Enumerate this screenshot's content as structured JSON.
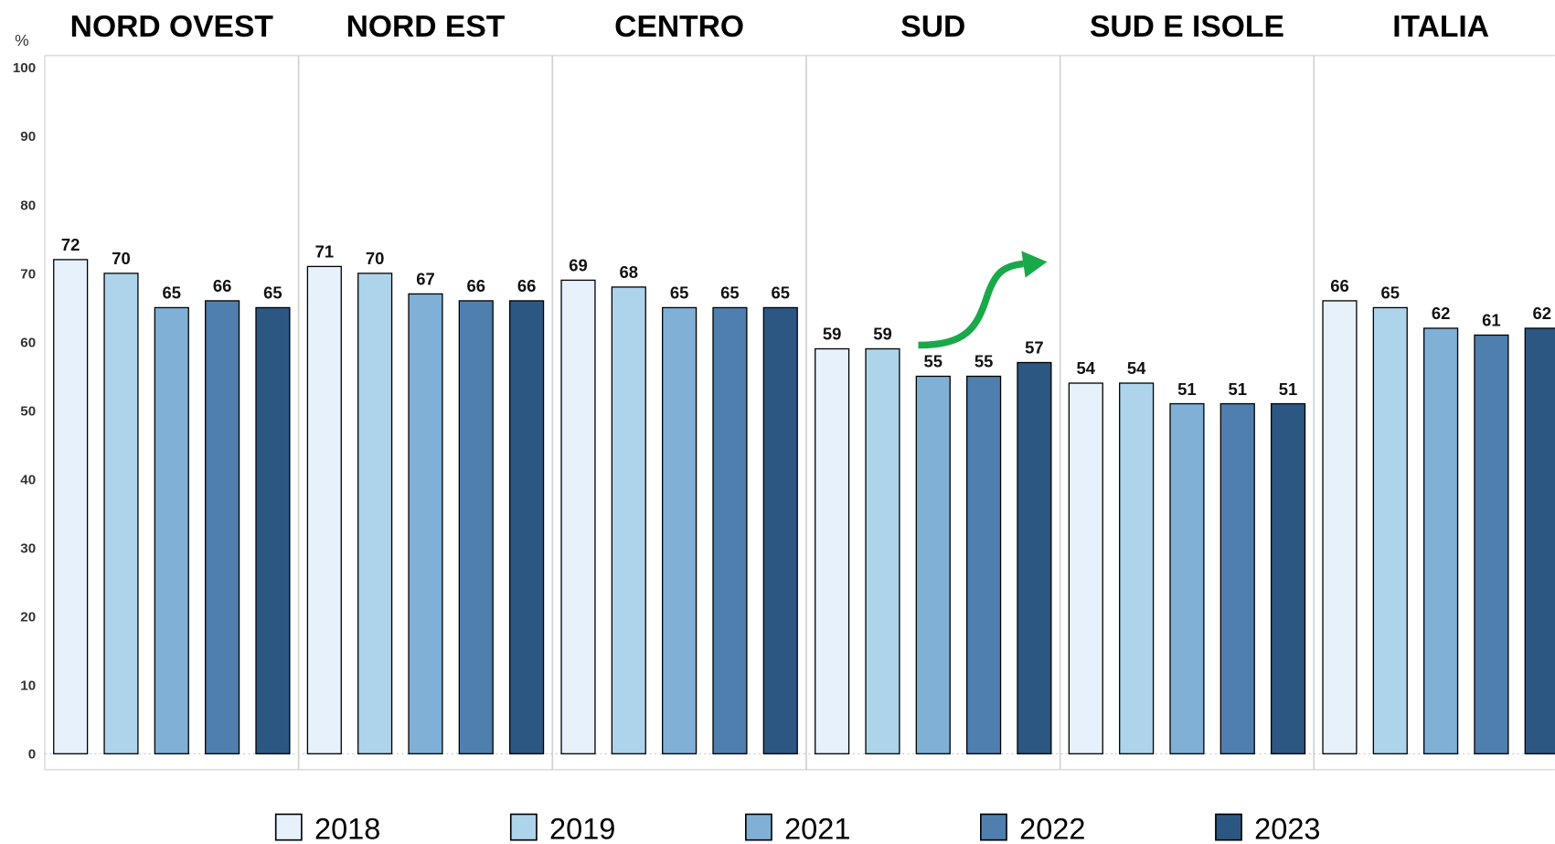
{
  "chart_data": {
    "type": "bar",
    "y_label": "%",
    "categories": [
      "NORD OVEST",
      "NORD EST",
      "CENTRO",
      "SUD",
      "SUD E ISOLE",
      "ITALIA"
    ],
    "series": [
      {
        "name": "2018",
        "color": "#e6f1fb",
        "values": [
          72,
          71,
          69,
          59,
          54,
          66
        ]
      },
      {
        "name": "2019",
        "color": "#aed4ec",
        "values": [
          70,
          70,
          68,
          59,
          54,
          65
        ]
      },
      {
        "name": "2021",
        "color": "#80b0d6",
        "values": [
          65,
          67,
          65,
          55,
          51,
          62
        ]
      },
      {
        "name": "2022",
        "color": "#4f7fae",
        "values": [
          66,
          66,
          65,
          55,
          51,
          61
        ]
      },
      {
        "name": "2023",
        "color": "#2c5783",
        "values": [
          65,
          66,
          65,
          57,
          51,
          62
        ]
      }
    ],
    "ylim": [
      0,
      100
    ],
    "yticks": [
      0,
      10,
      20,
      30,
      40,
      50,
      60,
      70,
      80,
      90,
      100
    ],
    "legend": "bottom"
  }
}
